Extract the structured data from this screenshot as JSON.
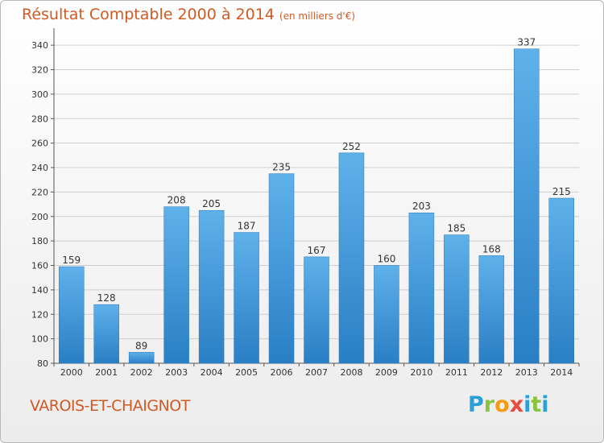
{
  "chart_data": {
    "type": "bar",
    "title": "Résultat Comptable 2000 à 2014",
    "subtitle": "(en milliers d'€)",
    "categories": [
      "2000",
      "2001",
      "2002",
      "2003",
      "2004",
      "2005",
      "2006",
      "2007",
      "2008",
      "2009",
      "2010",
      "2011",
      "2012",
      "2013",
      "2014"
    ],
    "values": [
      159,
      128,
      89,
      208,
      205,
      187,
      235,
      167,
      252,
      160,
      203,
      185,
      168,
      337,
      215
    ],
    "ylim": [
      80,
      350
    ],
    "yticks": [
      80,
      100,
      120,
      140,
      160,
      180,
      200,
      220,
      240,
      260,
      280,
      300,
      320,
      340
    ],
    "grid": true,
    "bar_color": "#4a9ee0",
    "data_labels": true
  },
  "footer": {
    "commune": "VAROIS-ET-CHAIGNOT",
    "logo_letters": [
      "P",
      "r",
      "o",
      "x",
      "i",
      "t",
      "i"
    ],
    "logo_colors": [
      "#2a9fd8",
      "#8ac43f",
      "#f39c12",
      "#e74c3c",
      "#2a9fd8",
      "#8ac43f",
      "#2a9fd8"
    ]
  },
  "colors": {
    "title": "#d05a23",
    "grid": "#cfcfcf"
  }
}
